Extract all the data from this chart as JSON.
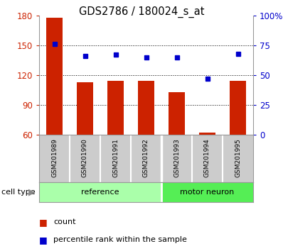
{
  "title": "GDS2786 / 180024_s_at",
  "samples": [
    "GSM201989",
    "GSM201990",
    "GSM201991",
    "GSM201992",
    "GSM201993",
    "GSM201994",
    "GSM201995"
  ],
  "count_values": [
    178,
    113,
    114,
    114,
    103,
    62,
    114
  ],
  "percentile_values": [
    76,
    66,
    67,
    65,
    65,
    47,
    68
  ],
  "reference_color": "#aaffaa",
  "motor_neuron_color": "#55ee55",
  "bar_color": "#CC2200",
  "dot_color": "#0000CC",
  "ylim_left": [
    60,
    180
  ],
  "ylim_right": [
    0,
    100
  ],
  "yticks_left": [
    60,
    90,
    120,
    150,
    180
  ],
  "yticks_right": [
    0,
    25,
    50,
    75,
    100
  ],
  "ytick_labels_right": [
    "0",
    "25",
    "50",
    "75",
    "100%"
  ],
  "bg_color": "#ffffff",
  "cell_type_label": "cell type",
  "legend_count": "count",
  "legend_percentile": "percentile rank within the sample",
  "n_reference": 4,
  "n_motor": 3,
  "bar_width": 0.55,
  "dot_size": 5
}
